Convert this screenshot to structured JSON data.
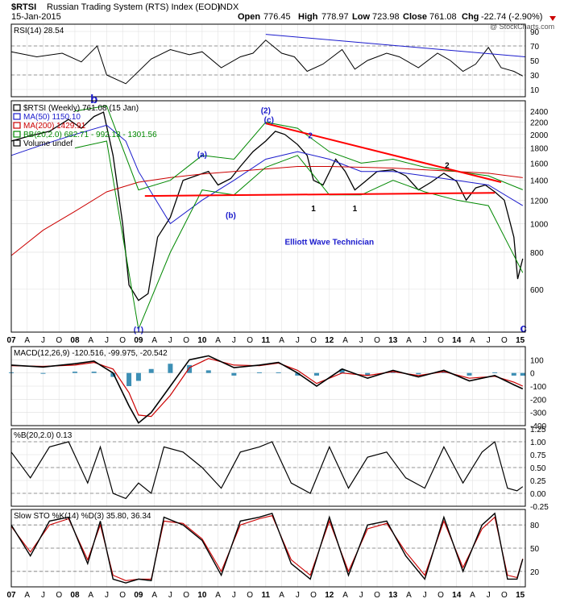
{
  "header": {
    "symbol": "$RTSI",
    "name": "Russian Trading System (RTS) Index (EOD)",
    "exchange": "INDX",
    "date": "15-Jan-2015",
    "open_label": "Open",
    "open": "776.45",
    "high_label": "High",
    "high": "778.97",
    "low_label": "Low",
    "low": "723.98",
    "close_label": "Close",
    "close": "761.08",
    "chg_label": "Chg",
    "chg": "-22.74 (-2.90%)",
    "watermark": "@ StockCharts.com"
  },
  "colors": {
    "background": "#ffffff",
    "price_up": "#000000",
    "price_down": "#cc0000",
    "ma50": "#1a1acc",
    "ma200": "#cc0000",
    "bollinger": "#008800",
    "trendline": "#ff0000",
    "wave_label": "#1a1acc",
    "macd_line": "#000000",
    "macd_signal": "#cc0000",
    "macd_hist": "#3d8fb5",
    "rsi_fill_over": "#4f8a4f",
    "rsi_fill_under": "#a06060"
  },
  "chart_data": [
    {
      "type": "line",
      "panel": "rsi",
      "label": "RSI(14) 28.54",
      "ylim": [
        0,
        100
      ],
      "ticks": [
        "90",
        "70",
        "50",
        "30",
        "10"
      ],
      "tick_values": [
        90,
        70,
        50,
        30,
        10
      ],
      "reference_lines": [
        70,
        30
      ],
      "x": [
        2007.0,
        2007.4,
        2007.8,
        2008.1,
        2008.35,
        2008.5,
        2008.8,
        2009.2,
        2009.5,
        2009.8,
        2010.0,
        2010.3,
        2010.6,
        2010.8,
        2011.0,
        2011.25,
        2011.45,
        2011.65,
        2011.9,
        2012.2,
        2012.4,
        2012.6,
        2012.9,
        2013.1,
        2013.4,
        2013.7,
        2013.9,
        2014.1,
        2014.3,
        2014.5,
        2014.7,
        2014.9,
        2015.04
      ],
      "y": [
        62,
        55,
        60,
        48,
        70,
        30,
        18,
        52,
        65,
        58,
        62,
        40,
        55,
        60,
        78,
        60,
        55,
        35,
        45,
        65,
        38,
        50,
        60,
        55,
        40,
        60,
        50,
        35,
        45,
        68,
        40,
        35,
        28.54
      ]
    },
    {
      "type": "line",
      "panel": "price",
      "title": "$RTSI (Weekly) 761.08 (15 Jan)",
      "log_scale": true,
      "ylim": [
        430,
        2600
      ],
      "ticks": [
        "2400",
        "2200",
        "2000",
        "1800",
        "1600",
        "1400",
        "1200",
        "1000",
        "800",
        "600"
      ],
      "tick_values": [
        2400,
        2200,
        2000,
        1800,
        1600,
        1400,
        1200,
        1000,
        800,
        600
      ],
      "x_ticks": [
        "07",
        "A",
        "J",
        "O",
        "08",
        "A",
        "J",
        "O",
        "09",
        "A",
        "J",
        "O",
        "10",
        "A",
        "J",
        "O",
        "11",
        "A",
        "J",
        "O",
        "12",
        "A",
        "J",
        "O",
        "13",
        "A",
        "J",
        "O",
        "14",
        "A",
        "J",
        "O",
        "15"
      ],
      "legend": [
        {
          "name": "$RTSI (Weekly) 761.08 (15 Jan)"
        },
        {
          "name": "MA(50) 1150.10"
        },
        {
          "name": "MA(200) 1429.91"
        },
        {
          "name": "BB(20,2.0) 682.71 - 992.13 - 1301.56"
        },
        {
          "name": "Volume undef"
        }
      ],
      "series": [
        {
          "name": "$RTSI",
          "x": [
            2007.0,
            2007.3,
            2007.6,
            2007.9,
            2008.1,
            2008.3,
            2008.45,
            2008.6,
            2008.75,
            2008.85,
            2009.0,
            2009.15,
            2009.3,
            2009.5,
            2009.7,
            2009.9,
            2010.1,
            2010.25,
            2010.45,
            2010.6,
            2010.8,
            2011.0,
            2011.15,
            2011.3,
            2011.5,
            2011.65,
            2011.75,
            2011.9,
            2012.1,
            2012.25,
            2012.4,
            2012.55,
            2012.75,
            2013.0,
            2013.2,
            2013.4,
            2013.6,
            2013.8,
            2014.0,
            2014.15,
            2014.3,
            2014.45,
            2014.6,
            2014.75,
            2014.9,
            2014.96,
            2015.04
          ],
          "y": [
            1900,
            1980,
            2050,
            2250,
            2100,
            2300,
            2380,
            1700,
            1000,
            620,
            550,
            580,
            900,
            1050,
            1400,
            1450,
            1500,
            1350,
            1420,
            1560,
            1750,
            1900,
            2050,
            2000,
            1850,
            1700,
            1400,
            1350,
            1650,
            1500,
            1300,
            1380,
            1500,
            1520,
            1450,
            1300,
            1380,
            1480,
            1390,
            1200,
            1320,
            1350,
            1280,
            1200,
            900,
            650,
            761.08
          ]
        },
        {
          "name": "MA(50)",
          "x": [
            2007.0,
            2007.5,
            2008.0,
            2008.5,
            2008.8,
            2009.0,
            2009.5,
            2010.0,
            2010.5,
            2011.0,
            2011.5,
            2012.0,
            2012.5,
            2013.0,
            2013.5,
            2014.0,
            2014.5,
            2015.04
          ],
          "y": [
            1700,
            1850,
            2000,
            2150,
            1900,
            1500,
            1000,
            1200,
            1400,
            1650,
            1750,
            1650,
            1500,
            1500,
            1450,
            1400,
            1350,
            1150.1
          ]
        },
        {
          "name": "MA(200)",
          "x": [
            2007.0,
            2007.5,
            2008.0,
            2008.5,
            2009.0,
            2009.5,
            2010.0,
            2010.5,
            2011.0,
            2011.5,
            2012.0,
            2012.5,
            2013.0,
            2013.5,
            2014.0,
            2014.5,
            2015.04
          ],
          "y": [
            780,
            950,
            1100,
            1280,
            1380,
            1430,
            1470,
            1500,
            1530,
            1560,
            1560,
            1550,
            1540,
            1520,
            1500,
            1480,
            1429.91
          ]
        },
        {
          "name": "BB upper",
          "x": [
            2008.0,
            2008.5,
            2009.0,
            2009.5,
            2010.0,
            2010.5,
            2011.0,
            2011.5,
            2012.0,
            2012.5,
            2013.0,
            2013.5,
            2014.0,
            2014.5,
            2015.04
          ],
          "y": [
            2400,
            2500,
            1300,
            1400,
            1700,
            1650,
            2200,
            2100,
            1750,
            1600,
            1650,
            1550,
            1500,
            1450,
            1301.56
          ]
        },
        {
          "name": "BB lower",
          "x": [
            2008.0,
            2008.5,
            2009.0,
            2009.5,
            2010.0,
            2010.5,
            2011.0,
            2011.5,
            2012.0,
            2012.5,
            2013.0,
            2013.5,
            2014.0,
            2014.5,
            2015.04
          ],
          "y": [
            1800,
            1900,
            440,
            800,
            1300,
            1250,
            1550,
            1700,
            1250,
            1250,
            1400,
            1280,
            1200,
            1150,
            682.71
          ]
        }
      ],
      "annotations": [
        {
          "text": "b",
          "x": 2008.3,
          "y": 2550
        },
        {
          "text": "(a)",
          "x": 2010.0,
          "y": 1720
        },
        {
          "text": "(b)",
          "x": 2010.45,
          "y": 1070
        },
        {
          "text": "(2)",
          "x": 2011.0,
          "y": 2420
        },
        {
          "text": "(c)",
          "x": 2011.05,
          "y": 2250
        },
        {
          "text": "2",
          "x": 2011.7,
          "y": 1990
        },
        {
          "text": "1",
          "x": 2011.75,
          "y": 1130
        },
        {
          "text": "1",
          "x": 2012.4,
          "y": 1130
        },
        {
          "text": "2",
          "x": 2013.85,
          "y": 1580
        },
        {
          "text": "(1)",
          "x": 2009.0,
          "y": 440
        },
        {
          "text": "Elliott Wave Technician",
          "x": 2012.0,
          "y": 870
        },
        {
          "text": "c",
          "x": 2015.05,
          "y": 430
        }
      ],
      "trendlines": [
        {
          "x": [
            2011.0,
            2014.7
          ],
          "y": [
            2180,
            1380
          ]
        },
        {
          "x": [
            2009.1,
            2014.6
          ],
          "y": [
            1240,
            1270
          ]
        }
      ]
    },
    {
      "type": "bar",
      "panel": "macd",
      "label": "MACD(12,26,9) -120.516, -99.975, -20.542",
      "ylim": [
        -400,
        200
      ],
      "ticks": [
        "100",
        "0",
        "-100",
        "-200",
        "-300",
        "-400"
      ],
      "tick_values": [
        100,
        0,
        -100,
        -200,
        -300,
        -400
      ],
      "x": [
        2007.0,
        2007.5,
        2008.0,
        2008.3,
        2008.6,
        2008.85,
        2009.0,
        2009.2,
        2009.5,
        2009.8,
        2010.1,
        2010.5,
        2010.9,
        2011.2,
        2011.5,
        2011.8,
        2012.2,
        2012.6,
        2013.0,
        2013.4,
        2013.8,
        2014.2,
        2014.6,
        2014.9,
        2015.04
      ],
      "series": [
        {
          "name": "MACD",
          "values": [
            60,
            45,
            70,
            90,
            0,
            -250,
            -380,
            -300,
            -100,
            100,
            130,
            40,
            60,
            80,
            0,
            -100,
            30,
            -40,
            20,
            -30,
            20,
            -60,
            -20,
            -90,
            -120.516
          ]
        },
        {
          "name": "Signal",
          "values": [
            55,
            50,
            60,
            80,
            30,
            -150,
            -320,
            -330,
            -170,
            40,
            110,
            60,
            55,
            75,
            20,
            -80,
            0,
            -20,
            10,
            -20,
            10,
            -40,
            -25,
            -70,
            -99.975
          ]
        },
        {
          "name": "Histogram",
          "values": [
            5,
            -5,
            10,
            10,
            -30,
            -100,
            -60,
            30,
            70,
            60,
            20,
            -20,
            5,
            5,
            -20,
            -20,
            30,
            -20,
            10,
            -10,
            10,
            -20,
            5,
            -20,
            -20.542
          ]
        }
      ]
    },
    {
      "type": "line",
      "panel": "percent_b",
      "label": "%B(20,2.0) 0.13",
      "ylim": [
        -0.25,
        1.25
      ],
      "ticks": [
        "1.25",
        "1.00",
        "0.75",
        "0.50",
        "0.25",
        "0.00",
        "-0.25"
      ],
      "tick_values": [
        1.25,
        1.0,
        0.75,
        0.5,
        0.25,
        0.0,
        -0.25
      ],
      "reference_lines": [
        1.0,
        0.5,
        0.0
      ],
      "x": [
        2007.0,
        2007.3,
        2007.6,
        2007.9,
        2008.2,
        2008.4,
        2008.6,
        2008.8,
        2009.0,
        2009.2,
        2009.4,
        2009.7,
        2010.0,
        2010.3,
        2010.6,
        2010.9,
        2011.1,
        2011.4,
        2011.7,
        2012.0,
        2012.3,
        2012.6,
        2012.9,
        2013.2,
        2013.5,
        2013.8,
        2014.1,
        2014.4,
        2014.6,
        2014.8,
        2014.95,
        2015.04
      ],
      "y": [
        0.8,
        0.3,
        0.9,
        1.0,
        0.2,
        0.9,
        0.0,
        -0.1,
        0.2,
        0.0,
        0.9,
        0.8,
        0.5,
        0.1,
        0.8,
        0.9,
        1.0,
        0.2,
        0.0,
        0.9,
        0.1,
        0.7,
        0.8,
        0.3,
        0.1,
        0.9,
        0.2,
        0.8,
        1.0,
        0.1,
        0.05,
        0.13
      ]
    },
    {
      "type": "line",
      "panel": "stochastic",
      "label": "Slow STO %K(14) %D(3) 35.80, 36.34",
      "ylim": [
        0,
        100
      ],
      "ticks": [
        "80",
        "50",
        "20"
      ],
      "tick_values": [
        80,
        50,
        20
      ],
      "reference_lines": [
        80,
        50,
        20
      ],
      "x": [
        2007.0,
        2007.3,
        2007.6,
        2007.9,
        2008.2,
        2008.4,
        2008.6,
        2008.8,
        2009.0,
        2009.2,
        2009.4,
        2009.7,
        2010.0,
        2010.3,
        2010.6,
        2010.9,
        2011.1,
        2011.4,
        2011.7,
        2012.0,
        2012.3,
        2012.6,
        2012.9,
        2013.2,
        2013.5,
        2013.8,
        2014.1,
        2014.4,
        2014.6,
        2014.8,
        2014.95,
        2015.04
      ],
      "series": [
        {
          "name": "%K",
          "values": [
            80,
            40,
            85,
            90,
            30,
            85,
            10,
            5,
            10,
            8,
            90,
            80,
            60,
            15,
            85,
            90,
            95,
            30,
            10,
            90,
            15,
            80,
            85,
            40,
            10,
            90,
            20,
            80,
            95,
            10,
            10,
            35.8
          ]
        },
        {
          "name": "%D",
          "values": [
            78,
            45,
            80,
            88,
            35,
            80,
            15,
            8,
            10,
            10,
            85,
            82,
            62,
            20,
            80,
            88,
            92,
            35,
            15,
            85,
            20,
            75,
            82,
            45,
            15,
            85,
            25,
            75,
            90,
            15,
            12,
            36.34
          ]
        }
      ]
    }
  ]
}
